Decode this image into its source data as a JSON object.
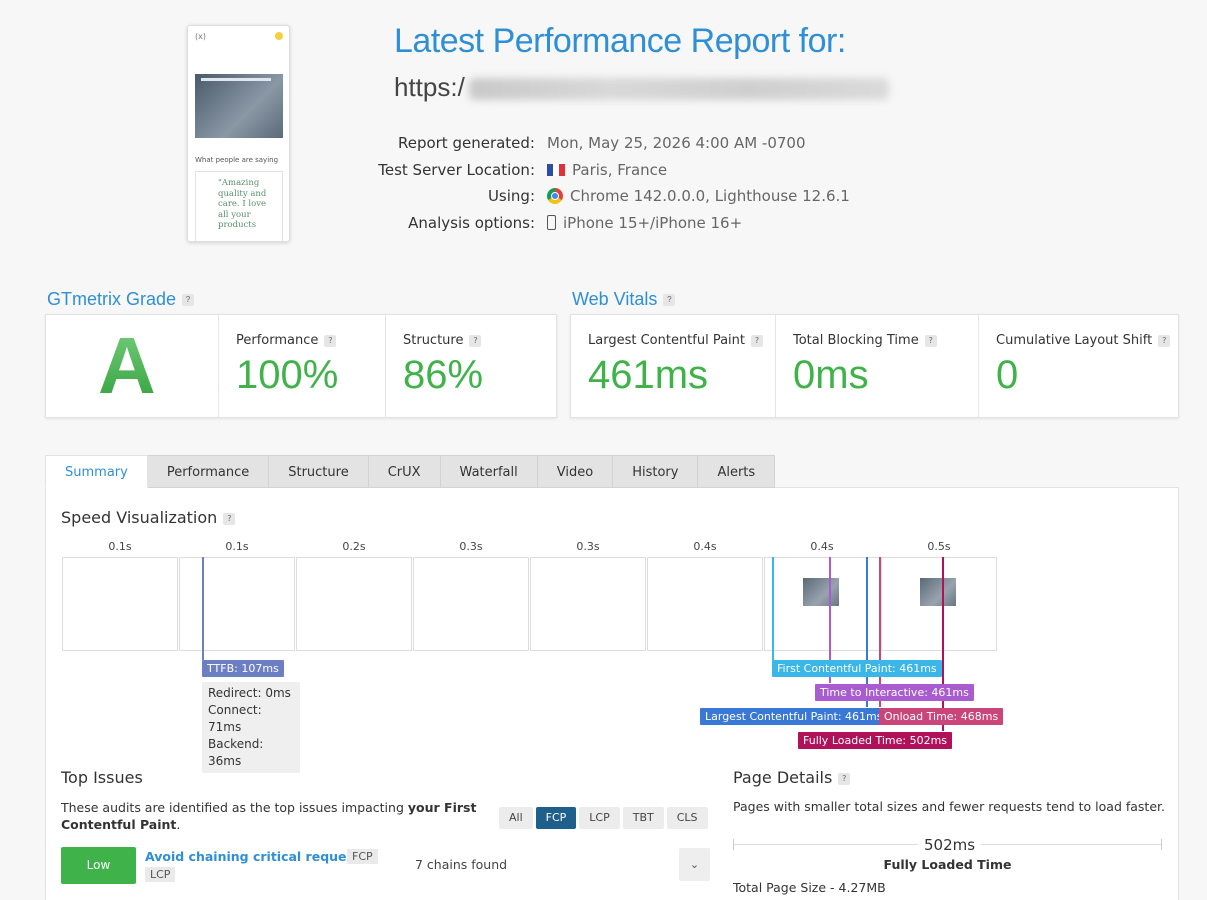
{
  "header": {
    "title": "Latest Performance Report for:",
    "url_prefix": "https:/",
    "thumbnail": {
      "logo": "(x)",
      "section_heading": "What people are saying",
      "quote": "\"Amazing quality and care. I love all your products"
    },
    "meta": [
      {
        "label": "Report generated:",
        "value": "Mon, May 25, 2026 4:00 AM -0700",
        "icon": ""
      },
      {
        "label": "Test Server Location:",
        "value": "Paris, France",
        "icon": "france-flag-icon"
      },
      {
        "label": "Using:",
        "value": "Chrome 142.0.0.0, Lighthouse 12.6.1",
        "icon": "chrome-icon"
      },
      {
        "label": "Analysis options:",
        "value": "iPhone 15+/iPhone 16+",
        "icon": "phone-icon"
      }
    ]
  },
  "grade": {
    "heading": "GTmetrix Grade",
    "letter": "A",
    "performance_label": "Performance",
    "performance_value": "100%",
    "structure_label": "Structure",
    "structure_value": "86%"
  },
  "vitals": {
    "heading": "Web Vitals",
    "lcp_label": "Largest Contentful Paint",
    "lcp_value": "461ms",
    "tbt_label": "Total Blocking Time",
    "tbt_value": "0ms",
    "cls_label": "Cumulative Layout Shift",
    "cls_value": "0"
  },
  "tabs": [
    "Summary",
    "Performance",
    "Structure",
    "CrUX",
    "Waterfall",
    "Video",
    "History",
    "Alerts"
  ],
  "speed": {
    "heading": "Speed Visualization",
    "frame_times": [
      "0.1s",
      "0.1s",
      "0.2s",
      "0.3s",
      "0.3s",
      "0.4s",
      "0.4s",
      "0.5s"
    ],
    "ttfb": "TTFB: 107ms",
    "ttfb_details": [
      "Redirect: 0ms",
      "Connect: 71ms",
      "Backend: 36ms"
    ],
    "markers": {
      "fcp": "First Contentful Paint: 461ms",
      "tti": "Time to Interactive: 461ms",
      "lcp": "Largest Contentful Paint: 461ms",
      "onload": "Onload Time: 468ms",
      "fully_loaded": "Fully Loaded Time: 502ms"
    },
    "colors": {
      "ttfb": "#6c7fc4",
      "fcp": "#3ab6e8",
      "tti": "#a95bd0",
      "lcp": "#3a78d8",
      "onload": "#c9457a",
      "fully": "#b0125a"
    }
  },
  "top_issues": {
    "heading": "Top Issues",
    "desc_prefix": "These audits are identified as the top issues impacting ",
    "desc_bold": "your First Contentful Paint",
    "desc_suffix": ".",
    "filters": [
      "All",
      "FCP",
      "LCP",
      "TBT",
      "CLS"
    ],
    "active_filter": "FCP",
    "issue": {
      "severity": "Low",
      "title": "Avoid chaining critical requests",
      "tags": [
        "FCP",
        "LCP"
      ],
      "detail": "7 chains found"
    }
  },
  "page_details": {
    "heading": "Page Details",
    "desc": "Pages with smaller total sizes and fewer requests tend to load faster.",
    "fully_loaded_value": "502ms",
    "fully_loaded_label": "Fully Loaded Time",
    "total_size": "Total Page Size - 4.27MB"
  }
}
